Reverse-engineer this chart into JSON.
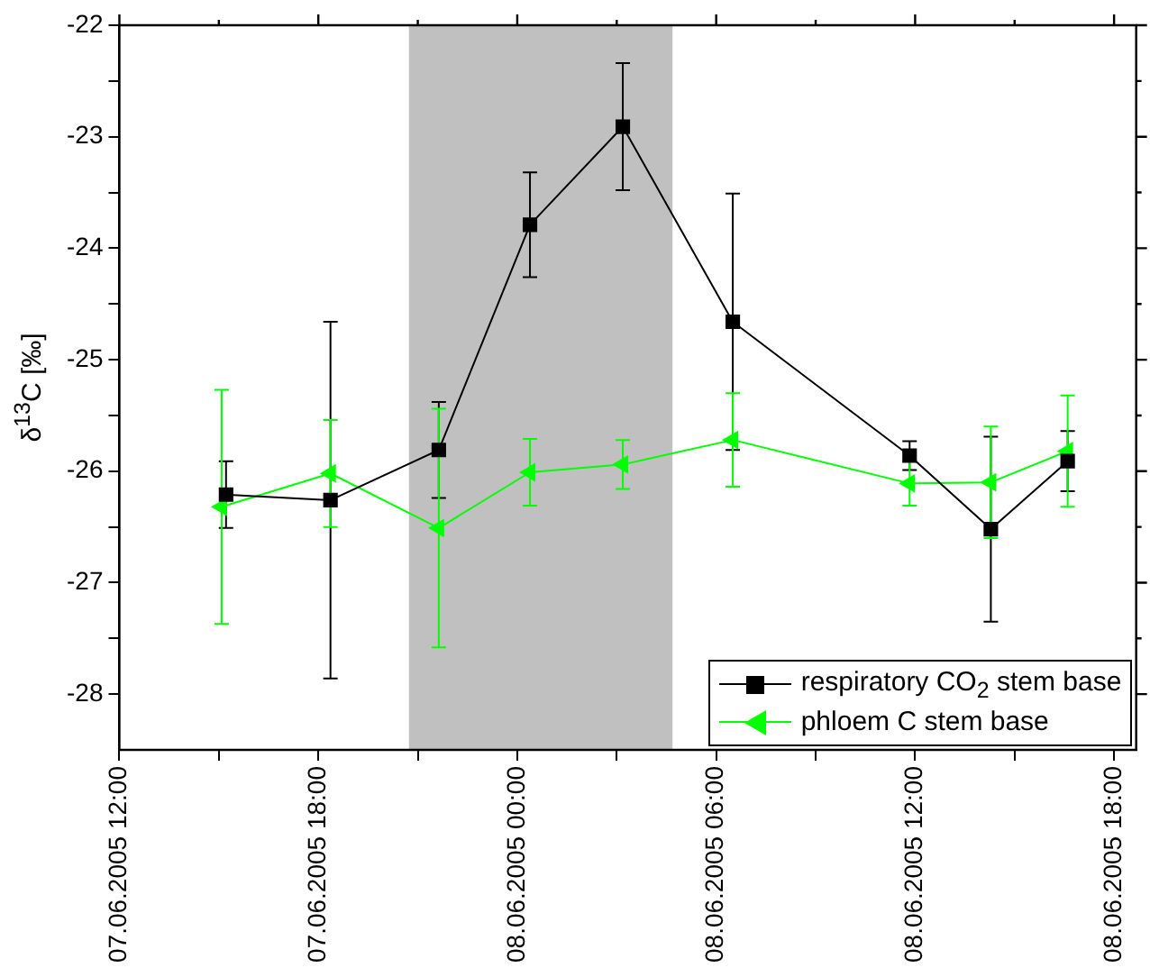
{
  "chart_data": {
    "type": "line",
    "ylabel": "δ$^{13}$C [‰]",
    "xlim": [
      "2005-06-07T12:00",
      "2005-06-08T18:40"
    ],
    "xticks": [
      {
        "value": "2005-06-07T12:00",
        "label": "07.06.2005 12:00"
      },
      {
        "value": "2005-06-07T15:00",
        "label": null
      },
      {
        "value": "2005-06-07T18:00",
        "label": "07.06.2005 18:00"
      },
      {
        "value": "2005-06-07T21:00",
        "label": null
      },
      {
        "value": "2005-06-08T00:00",
        "label": "08.06.2005 00:00"
      },
      {
        "value": "2005-06-08T03:00",
        "label": null
      },
      {
        "value": "2005-06-08T06:00",
        "label": "08.06.2005 06:00"
      },
      {
        "value": "2005-06-08T09:00",
        "label": null
      },
      {
        "value": "2005-06-08T12:00",
        "label": "08.06.2005 12:00"
      },
      {
        "value": "2005-06-08T15:00",
        "label": null
      },
      {
        "value": "2005-06-08T18:00",
        "label": "08.06.2005 18:00"
      }
    ],
    "ylim": [
      -28.5,
      -22
    ],
    "yticks": [
      -28,
      {
        "value": -27.5,
        "label": null
      },
      -27,
      {
        "value": -26.5,
        "label": null
      },
      -26,
      {
        "value": -25.5,
        "label": null
      },
      -25,
      {
        "value": -24.5,
        "label": null
      },
      -24,
      {
        "value": -23.5,
        "label": null
      },
      -23,
      {
        "value": -22.5,
        "label": null
      },
      -22
    ],
    "grid": false,
    "legend": "bottom right",
    "line_style": "solid",
    "bands": [
      {
        "axis": "x",
        "from": "2005-06-07T20:44",
        "to": "2005-06-08T04:41",
        "color": "#c0c0c0"
      }
    ],
    "series": [
      {
        "name": "respiratory CO$_{2}$ stem base",
        "color": "#000000",
        "marker": "square",
        "x": [
          "2005-06-07T15:13",
          "2005-06-07T18:22",
          "2005-06-07T21:38",
          "2005-06-08T00:23",
          "2005-06-08T03:11",
          "2005-06-08T06:30",
          "2005-06-08T11:50",
          "2005-06-08T14:17",
          "2005-06-08T16:36"
        ],
        "values": [
          -26.21,
          -26.26,
          -25.81,
          -23.79,
          -22.91,
          -24.66,
          -25.86,
          -26.52,
          -25.91
        ],
        "errors": [
          0.3,
          1.6,
          0.43,
          0.47,
          0.57,
          1.15,
          0.13,
          0.83,
          0.27
        ]
      },
      {
        "name": "phloem C stem base",
        "color": "#00ff00",
        "marker": "triangle",
        "x": [
          "2005-06-07T15:05",
          "2005-06-07T18:22",
          "2005-06-07T21:38",
          "2005-06-08T00:23",
          "2005-06-08T03:11",
          "2005-06-08T06:30",
          "2005-06-08T11:50",
          "2005-06-08T14:17",
          "2005-06-08T16:36"
        ],
        "values": [
          -26.32,
          -26.02,
          -26.51,
          -26.01,
          -25.94,
          -25.72,
          -26.11,
          -26.1,
          -25.82
        ],
        "errors": [
          1.05,
          0.48,
          1.07,
          0.3,
          0.22,
          0.42,
          0.2,
          0.5,
          0.5
        ]
      }
    ]
  }
}
